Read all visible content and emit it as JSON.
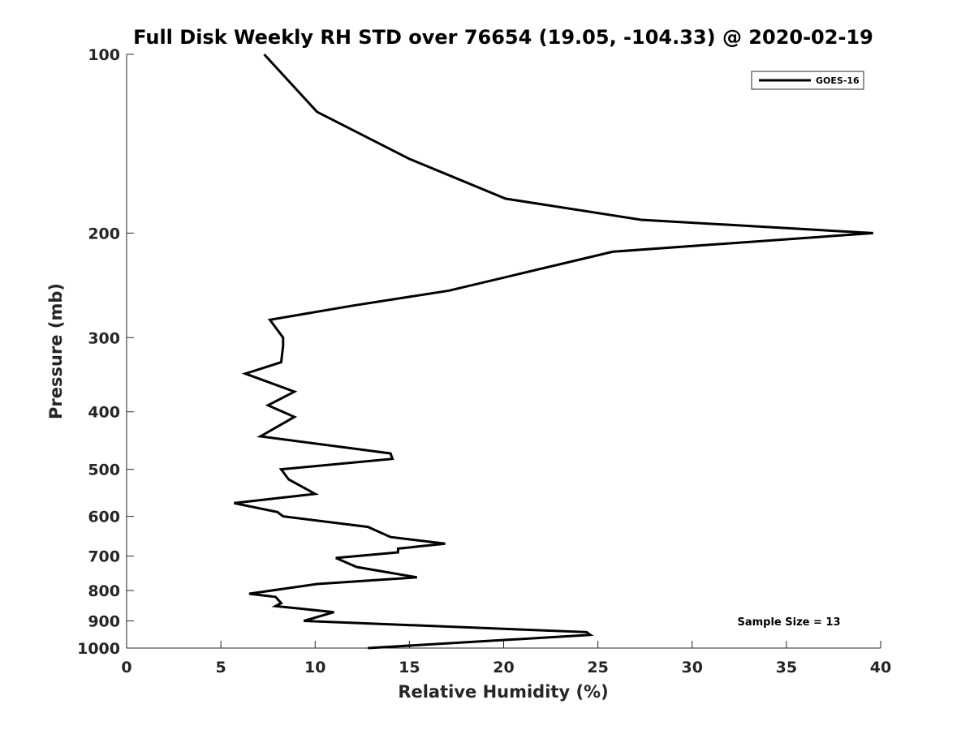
{
  "chart_data": {
    "type": "line",
    "title": "Full Disk Weekly RH STD over 76654 (19.05, -104.33) @ 2020-02-19",
    "xlabel": "Relative Humidity (%)",
    "ylabel": "Pressure (mb)",
    "xlim": [
      0,
      40
    ],
    "ylim": [
      100,
      1000
    ],
    "y_scale": "log",
    "y_reversed": true,
    "x_ticks": [
      0,
      5,
      10,
      15,
      20,
      25,
      30,
      35,
      40
    ],
    "y_ticks": [
      100,
      200,
      300,
      400,
      500,
      600,
      700,
      800,
      900,
      1000
    ],
    "grid": false,
    "legend_position": "top-right",
    "series": [
      {
        "name": "GOES-16",
        "color": "#000000",
        "points": [
          [
            7.3,
            100
          ],
          [
            10.1,
            125
          ],
          [
            15.0,
            150
          ],
          [
            20.1,
            175
          ],
          [
            27.3,
            190
          ],
          [
            39.6,
            200
          ],
          [
            25.8,
            215
          ],
          [
            17.1,
            250
          ],
          [
            12.0,
            265
          ],
          [
            7.6,
            280
          ],
          [
            8.3,
            300
          ],
          [
            8.3,
            310
          ],
          [
            8.2,
            330
          ],
          [
            6.3,
            345
          ],
          [
            8.9,
            370
          ],
          [
            7.5,
            390
          ],
          [
            8.9,
            408
          ],
          [
            7.1,
            440
          ],
          [
            14.0,
            470
          ],
          [
            14.1,
            480
          ],
          [
            8.2,
            500
          ],
          [
            8.6,
            520
          ],
          [
            10.0,
            550
          ],
          [
            5.7,
            570
          ],
          [
            8.0,
            590
          ],
          [
            8.3,
            600
          ],
          [
            12.8,
            625
          ],
          [
            14.0,
            650
          ],
          [
            16.9,
            667
          ],
          [
            14.4,
            680
          ],
          [
            14.4,
            690
          ],
          [
            11.1,
            705
          ],
          [
            12.2,
            730
          ],
          [
            15.4,
            760
          ],
          [
            10.1,
            780
          ],
          [
            6.5,
            810
          ],
          [
            7.9,
            820
          ],
          [
            8.2,
            840
          ],
          [
            7.9,
            850
          ],
          [
            11.0,
            870
          ],
          [
            9.4,
            900
          ],
          [
            24.4,
            940
          ],
          [
            24.6,
            950
          ],
          [
            12.8,
            1000
          ]
        ]
      }
    ],
    "annotation": "Sample Size = 13"
  }
}
